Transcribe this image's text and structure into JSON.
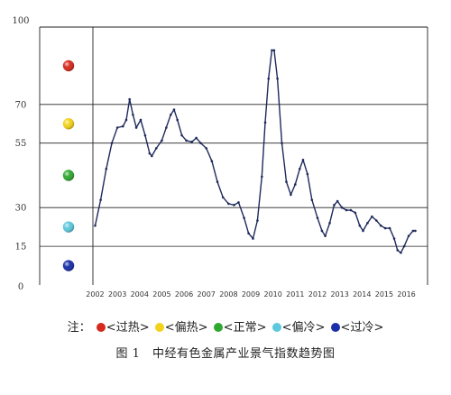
{
  "chart_data": {
    "type": "line",
    "title": "",
    "xlabel": "",
    "ylabel": "",
    "ylim": [
      0,
      100
    ],
    "yticks": [
      "0",
      "15",
      "30",
      "55",
      "70",
      "100"
    ],
    "ytick_values": [
      0,
      15,
      30,
      55,
      70,
      100
    ],
    "gridlines_at": [
      15,
      30,
      55,
      70
    ],
    "xlim": [
      2001.9,
      2016.95
    ],
    "xticks": [
      "2002",
      "2003",
      "2004",
      "2005",
      "2006",
      "2007",
      "2008",
      "2009",
      "2010",
      "2011",
      "2012",
      "2013",
      "2014",
      "2015",
      "2016"
    ],
    "xtick_values": [
      2002,
      2003,
      2004,
      2005,
      2006,
      2007,
      2008,
      2009,
      2010,
      2011,
      2012,
      2013,
      2014,
      2015,
      2016
    ],
    "grid": true,
    "series": [
      {
        "color": "#1f2a5c",
        "marker": "dot",
        "points": [
          [
            2002.0,
            23
          ],
          [
            2002.25,
            33
          ],
          [
            2002.5,
            45
          ],
          [
            2002.75,
            55
          ],
          [
            2003.0,
            61
          ],
          [
            2003.25,
            61.5
          ],
          [
            2003.4,
            64
          ],
          [
            2003.55,
            72
          ],
          [
            2003.7,
            66
          ],
          [
            2003.85,
            61
          ],
          [
            2004.05,
            64
          ],
          [
            2004.25,
            58
          ],
          [
            2004.45,
            51
          ],
          [
            2004.55,
            50
          ],
          [
            2004.75,
            53
          ],
          [
            2005.0,
            56
          ],
          [
            2005.2,
            61
          ],
          [
            2005.4,
            66
          ],
          [
            2005.55,
            68
          ],
          [
            2005.7,
            64
          ],
          [
            2005.9,
            58
          ],
          [
            2006.1,
            56
          ],
          [
            2006.35,
            55.5
          ],
          [
            2006.55,
            57
          ],
          [
            2006.75,
            55
          ],
          [
            2007.0,
            53
          ],
          [
            2007.25,
            48
          ],
          [
            2007.5,
            40
          ],
          [
            2007.75,
            34
          ],
          [
            2008.0,
            31.5
          ],
          [
            2008.25,
            31
          ],
          [
            2008.45,
            32
          ],
          [
            2008.7,
            26
          ],
          [
            2008.9,
            20
          ],
          [
            2009.1,
            18
          ],
          [
            2009.3,
            25
          ],
          [
            2009.5,
            42
          ],
          [
            2009.65,
            63
          ],
          [
            2009.8,
            80
          ],
          [
            2009.95,
            91
          ],
          [
            2010.05,
            91
          ],
          [
            2010.2,
            80
          ],
          [
            2010.4,
            55
          ],
          [
            2010.6,
            40
          ],
          [
            2010.8,
            35
          ],
          [
            2011.0,
            39
          ],
          [
            2011.2,
            45
          ],
          [
            2011.35,
            48.5
          ],
          [
            2011.55,
            43
          ],
          [
            2011.75,
            33
          ],
          [
            2012.0,
            26
          ],
          [
            2012.2,
            21
          ],
          [
            2012.35,
            19
          ],
          [
            2012.55,
            24
          ],
          [
            2012.75,
            31
          ],
          [
            2012.9,
            32.5
          ],
          [
            2013.1,
            30
          ],
          [
            2013.3,
            29
          ],
          [
            2013.5,
            29
          ],
          [
            2013.7,
            28
          ],
          [
            2013.9,
            23
          ],
          [
            2014.05,
            21
          ],
          [
            2014.25,
            24
          ],
          [
            2014.45,
            26.5
          ],
          [
            2014.65,
            25
          ],
          [
            2014.85,
            23
          ],
          [
            2015.05,
            22
          ],
          [
            2015.25,
            22
          ],
          [
            2015.45,
            18
          ],
          [
            2015.6,
            13.5
          ],
          [
            2015.75,
            12.5
          ],
          [
            2015.9,
            15
          ],
          [
            2016.1,
            19
          ],
          [
            2016.3,
            21
          ],
          [
            2016.4,
            21
          ]
        ]
      }
    ],
    "zone_markers": [
      {
        "name": "过热",
        "color": "#d62a1e",
        "value": 85
      },
      {
        "name": "偏热",
        "color": "#f2d21a",
        "value": 62.5
      },
      {
        "name": "正常",
        "color": "#2fa82f",
        "value": 42.5
      },
      {
        "name": "偏冷",
        "color": "#5ec8dc",
        "value": 22.5
      },
      {
        "name": "过冷",
        "color": "#1a2fa8",
        "value": 7.5
      }
    ]
  },
  "legend": {
    "prefix": "注：",
    "items": [
      {
        "label": "<过热>",
        "color": "#d62a1e",
        "icon": "red-dot-icon"
      },
      {
        "label": "<偏热>",
        "color": "#f2d21a",
        "icon": "yellow-dot-icon"
      },
      {
        "label": "<正常>",
        "color": "#2fa82f",
        "icon": "green-dot-icon"
      },
      {
        "label": "<偏冷>",
        "color": "#5ec8dc",
        "icon": "cyan-dot-icon"
      },
      {
        "label": "<过冷>",
        "color": "#1a2fa8",
        "icon": "blue-dot-icon"
      }
    ]
  },
  "caption": "图 1　中经有色金属产业景气指数趋势图"
}
